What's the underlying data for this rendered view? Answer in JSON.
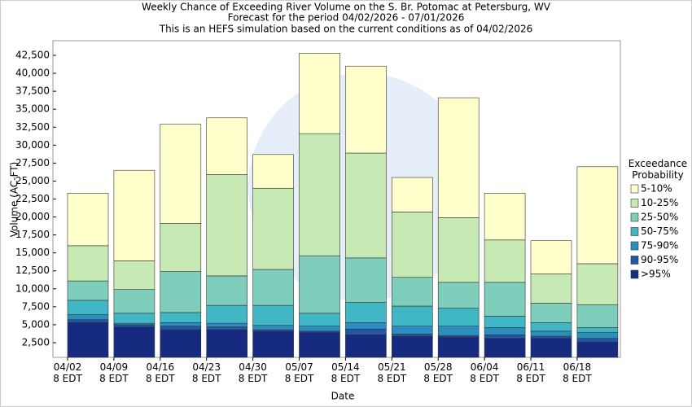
{
  "chart_data": {
    "type": "stacked_bar",
    "title": "Weekly Chance of Exceeding River Volume on the S. Br. Potomac at Petersburg, WV",
    "subtitle": "Forecast for the period 04/02/2026 - 07/01/2026",
    "note": "This is an HEFS simulation based on the current conditions as of 04/02/2026",
    "x_label": "Date",
    "y_label": "Volume (AC-FT)",
    "legend_title": "Exceedance Probability",
    "legend_position": "right",
    "categories": [
      "04/02 8 EDT",
      "04/09 8 EDT",
      "04/16 8 EDT",
      "04/23 8 EDT",
      "04/30 8 EDT",
      "05/07 8 EDT",
      "05/14 8 EDT",
      "05/21 8 EDT",
      "05/28 8 EDT",
      "06/04 8 EDT",
      "06/11 8 EDT",
      "06/18 8 EDT"
    ],
    "series": [
      {
        "name": ">95%",
        "color": "#162a80",
        "values": [
          5300,
          4700,
          4300,
          4300,
          4100,
          3900,
          3600,
          3400,
          3300,
          3100,
          3100,
          2600
        ]
      },
      {
        "name": "90-95%",
        "color": "#2356a8",
        "values": [
          400,
          300,
          500,
          400,
          200,
          200,
          800,
          300,
          200,
          500,
          300,
          500
        ]
      },
      {
        "name": "75-90%",
        "color": "#2a8fbf",
        "values": [
          700,
          200,
          500,
          500,
          600,
          700,
          900,
          1100,
          1300,
          1000,
          700,
          800
        ]
      },
      {
        "name": "50-75%",
        "color": "#41b6c4",
        "values": [
          2000,
          1400,
          1400,
          2500,
          2800,
          1800,
          2800,
          2800,
          2500,
          1600,
          1200,
          700
        ]
      },
      {
        "name": "25-50%",
        "color": "#7fcdbb",
        "values": [
          2700,
          3300,
          5700,
          4100,
          5000,
          8000,
          6200,
          4000,
          3600,
          4700,
          2700,
          3200
        ]
      },
      {
        "name": "10-25%",
        "color": "#c7e9b4",
        "values": [
          4900,
          4000,
          6700,
          14100,
          11300,
          17000,
          14600,
          9100,
          9000,
          5900,
          4100,
          5700
        ]
      },
      {
        "name": "5-10%",
        "color": "#ffffcc",
        "values": [
          7300,
          12600,
          13800,
          7900,
          4700,
          11200,
          12100,
          4800,
          16700,
          6500,
          4600,
          13500
        ]
      }
    ],
    "ylim": [
      460,
      44540
    ],
    "yticks": [
      {
        "value": 2500,
        "label": "2,500"
      },
      {
        "value": 5000,
        "label": "5,000"
      },
      {
        "value": 7500,
        "label": "7,500"
      },
      {
        "value": 10000,
        "label": "10,000"
      },
      {
        "value": 12500,
        "label": "12,500"
      },
      {
        "value": 15000,
        "label": "15,000"
      },
      {
        "value": 17500,
        "label": "17,500"
      },
      {
        "value": 20000,
        "label": "20,000"
      },
      {
        "value": 22500,
        "label": "22,500"
      },
      {
        "value": 25000,
        "label": "25,000"
      },
      {
        "value": 27500,
        "label": "27,500"
      },
      {
        "value": 30000,
        "label": "30,000"
      },
      {
        "value": 32500,
        "label": "32,500"
      },
      {
        "value": 35000,
        "label": "35,000"
      },
      {
        "value": 37500,
        "label": "37,500"
      },
      {
        "value": 40000,
        "label": "40,000"
      },
      {
        "value": 42500,
        "label": "42,500"
      }
    ],
    "grid": false
  }
}
